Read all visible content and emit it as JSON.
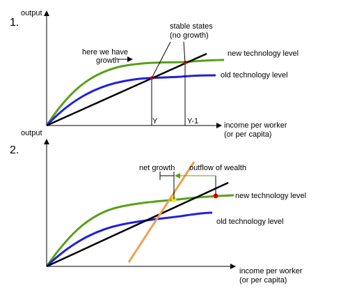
{
  "panel1": {
    "number": "1.",
    "y_axis_label": "output",
    "x_axis_label_line1": "income per worker",
    "x_axis_label_line2": "(or per capita)",
    "annotation_growth_line1": "here we have",
    "annotation_growth_line2": "growth",
    "annotation_stable_line1": "stable states",
    "annotation_stable_line2": "(no growth)",
    "new_tech_label": "new technology level",
    "old_tech_label": "old technology level",
    "tick_y": "Y",
    "tick_y1": "Y-1"
  },
  "panel2": {
    "number": "2.",
    "y_axis_label": "output",
    "x_axis_label_line1": "income per worker",
    "x_axis_label_line2": "(or per capita)",
    "net_growth_label": "net growth",
    "outflow_label": "outflow of wealth",
    "new_tech_label": "new technology level",
    "old_tech_label": "old technology level"
  },
  "colors": {
    "new_tech": "#58a018",
    "old_tech": "#2020e0",
    "income_line": "#000000",
    "outflow_line": "#f0a050",
    "stable_point": "#e00000",
    "net_point": "#f0f000"
  }
}
